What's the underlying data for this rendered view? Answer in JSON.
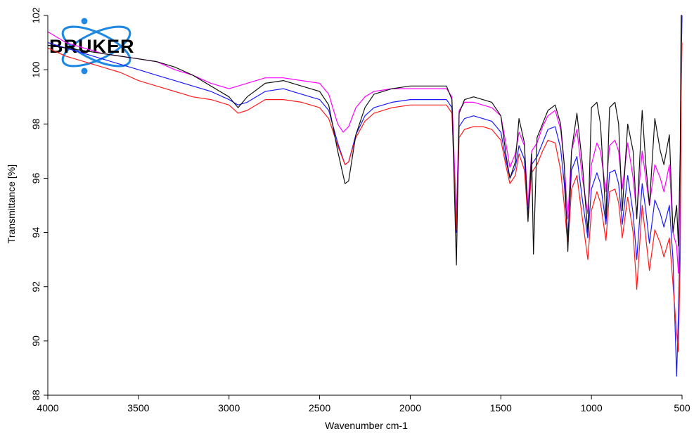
{
  "logo": {
    "text": "BRUKER",
    "orbit_color": "#1e88e5"
  },
  "chart_data": {
    "type": "line",
    "title": "",
    "xlabel": "Wavenumber cm-1",
    "ylabel": "Transmittance [%]",
    "xlim": [
      4000,
      500
    ],
    "ylim": [
      88,
      102
    ],
    "x_ticks": [
      4000,
      3500,
      3000,
      2500,
      2000,
      1500,
      1000,
      500
    ],
    "x_tick_labels": [
      "4000",
      "3500",
      "3000",
      "2500",
      "2000",
      "1500",
      "1000",
      "500"
    ],
    "y_ticks": [
      88,
      90,
      92,
      94,
      96,
      98,
      100,
      102
    ],
    "y_tick_labels": [
      "88",
      "90",
      "92",
      "94",
      "96",
      "98",
      "100",
      "102"
    ],
    "grid": false,
    "legend": "none",
    "series": [
      {
        "color": "#ff00ff",
        "points": [
          [
            4000,
            101.4
          ],
          [
            3900,
            101.0
          ],
          [
            3800,
            100.8
          ],
          [
            3700,
            100.6
          ],
          [
            3600,
            100.5
          ],
          [
            3500,
            100.4
          ],
          [
            3400,
            100.3
          ],
          [
            3300,
            100.0
          ],
          [
            3200,
            99.8
          ],
          [
            3100,
            99.5
          ],
          [
            3000,
            99.3
          ],
          [
            2950,
            99.4
          ],
          [
            2900,
            99.5
          ],
          [
            2800,
            99.7
          ],
          [
            2700,
            99.7
          ],
          [
            2600,
            99.6
          ],
          [
            2500,
            99.5
          ],
          [
            2450,
            99.1
          ],
          [
            2400,
            98.0
          ],
          [
            2370,
            97.7
          ],
          [
            2340,
            97.9
          ],
          [
            2300,
            98.6
          ],
          [
            2250,
            99.0
          ],
          [
            2200,
            99.2
          ],
          [
            2100,
            99.3
          ],
          [
            2000,
            99.3
          ],
          [
            1900,
            99.3
          ],
          [
            1800,
            99.3
          ],
          [
            1770,
            99.0
          ],
          [
            1745,
            94.6
          ],
          [
            1730,
            98.5
          ],
          [
            1700,
            98.8
          ],
          [
            1650,
            98.8
          ],
          [
            1600,
            98.7
          ],
          [
            1550,
            98.6
          ],
          [
            1500,
            98.3
          ],
          [
            1470,
            97.2
          ],
          [
            1450,
            96.4
          ],
          [
            1420,
            96.9
          ],
          [
            1400,
            97.7
          ],
          [
            1370,
            97.2
          ],
          [
            1350,
            95.0
          ],
          [
            1330,
            97.0
          ],
          [
            1300,
            97.3
          ],
          [
            1270,
            97.9
          ],
          [
            1240,
            98.3
          ],
          [
            1200,
            98.5
          ],
          [
            1170,
            97.8
          ],
          [
            1150,
            96.5
          ],
          [
            1130,
            94.5
          ],
          [
            1110,
            97.0
          ],
          [
            1080,
            97.8
          ],
          [
            1050,
            96.0
          ],
          [
            1020,
            94.7
          ],
          [
            1000,
            96.5
          ],
          [
            970,
            97.3
          ],
          [
            950,
            97.0
          ],
          [
            920,
            95.5
          ],
          [
            900,
            97.2
          ],
          [
            870,
            97.4
          ],
          [
            850,
            97.0
          ],
          [
            830,
            95.6
          ],
          [
            800,
            97.3
          ],
          [
            770,
            96.0
          ],
          [
            750,
            94.7
          ],
          [
            720,
            97.0
          ],
          [
            700,
            96.0
          ],
          [
            680,
            95.0
          ],
          [
            650,
            96.5
          ],
          [
            620,
            96.0
          ],
          [
            600,
            95.5
          ],
          [
            570,
            96.5
          ],
          [
            550,
            94.0
          ],
          [
            530,
            93.5
          ],
          [
            520,
            92.5
          ],
          [
            510,
            96.0
          ],
          [
            505,
            101.5
          ],
          [
            500,
            102.0
          ]
        ]
      },
      {
        "color": "#1a1aff",
        "points": [
          [
            4000,
            101.0
          ],
          [
            3900,
            100.8
          ],
          [
            3800,
            100.6
          ],
          [
            3700,
            100.4
          ],
          [
            3600,
            100.2
          ],
          [
            3500,
            100.0
          ],
          [
            3400,
            99.8
          ],
          [
            3300,
            99.6
          ],
          [
            3200,
            99.4
          ],
          [
            3100,
            99.2
          ],
          [
            3000,
            98.9
          ],
          [
            2950,
            98.7
          ],
          [
            2900,
            98.8
          ],
          [
            2800,
            99.2
          ],
          [
            2700,
            99.3
          ],
          [
            2600,
            99.1
          ],
          [
            2500,
            98.9
          ],
          [
            2450,
            98.5
          ],
          [
            2400,
            97.3
          ],
          [
            2360,
            96.5
          ],
          [
            2340,
            96.6
          ],
          [
            2300,
            97.6
          ],
          [
            2250,
            98.3
          ],
          [
            2200,
            98.6
          ],
          [
            2100,
            98.8
          ],
          [
            2000,
            98.9
          ],
          [
            1900,
            98.9
          ],
          [
            1800,
            98.9
          ],
          [
            1770,
            98.6
          ],
          [
            1745,
            94.0
          ],
          [
            1730,
            97.9
          ],
          [
            1700,
            98.2
          ],
          [
            1650,
            98.3
          ],
          [
            1600,
            98.2
          ],
          [
            1550,
            98.1
          ],
          [
            1500,
            97.7
          ],
          [
            1470,
            96.6
          ],
          [
            1450,
            96.0
          ],
          [
            1420,
            96.4
          ],
          [
            1400,
            97.2
          ],
          [
            1370,
            96.7
          ],
          [
            1350,
            94.7
          ],
          [
            1330,
            96.5
          ],
          [
            1300,
            96.8
          ],
          [
            1270,
            97.3
          ],
          [
            1240,
            97.8
          ],
          [
            1200,
            97.9
          ],
          [
            1170,
            97.1
          ],
          [
            1150,
            95.8
          ],
          [
            1130,
            93.8
          ],
          [
            1110,
            96.3
          ],
          [
            1080,
            96.8
          ],
          [
            1050,
            95.2
          ],
          [
            1020,
            93.8
          ],
          [
            1000,
            95.6
          ],
          [
            970,
            96.2
          ],
          [
            950,
            95.8
          ],
          [
            920,
            94.3
          ],
          [
            900,
            96.2
          ],
          [
            870,
            96.3
          ],
          [
            850,
            95.8
          ],
          [
            830,
            94.3
          ],
          [
            800,
            96.1
          ],
          [
            770,
            94.7
          ],
          [
            750,
            93.0
          ],
          [
            720,
            95.8
          ],
          [
            700,
            94.8
          ],
          [
            680,
            93.6
          ],
          [
            650,
            95.2
          ],
          [
            620,
            94.7
          ],
          [
            600,
            94.2
          ],
          [
            570,
            95.0
          ],
          [
            550,
            93.0
          ],
          [
            530,
            88.7
          ],
          [
            520,
            91.0
          ],
          [
            510,
            94.0
          ],
          [
            505,
            100.0
          ],
          [
            500,
            102.0
          ]
        ]
      },
      {
        "color": "#ff1a1a",
        "points": [
          [
            4000,
            100.8
          ],
          [
            3900,
            100.5
          ],
          [
            3800,
            100.3
          ],
          [
            3700,
            100.1
          ],
          [
            3600,
            99.9
          ],
          [
            3500,
            99.6
          ],
          [
            3400,
            99.4
          ],
          [
            3300,
            99.2
          ],
          [
            3200,
            99.0
          ],
          [
            3100,
            98.9
          ],
          [
            3000,
            98.7
          ],
          [
            2950,
            98.4
          ],
          [
            2900,
            98.5
          ],
          [
            2800,
            98.9
          ],
          [
            2700,
            98.9
          ],
          [
            2600,
            98.8
          ],
          [
            2500,
            98.6
          ],
          [
            2450,
            98.2
          ],
          [
            2400,
            97.2
          ],
          [
            2360,
            96.5
          ],
          [
            2340,
            96.6
          ],
          [
            2300,
            97.5
          ],
          [
            2250,
            98.1
          ],
          [
            2200,
            98.4
          ],
          [
            2100,
            98.6
          ],
          [
            2000,
            98.7
          ],
          [
            1900,
            98.7
          ],
          [
            1800,
            98.7
          ],
          [
            1770,
            98.4
          ],
          [
            1745,
            94.1
          ],
          [
            1730,
            97.5
          ],
          [
            1700,
            97.8
          ],
          [
            1650,
            97.9
          ],
          [
            1600,
            97.9
          ],
          [
            1550,
            97.8
          ],
          [
            1500,
            97.4
          ],
          [
            1470,
            96.4
          ],
          [
            1450,
            95.8
          ],
          [
            1420,
            96.1
          ],
          [
            1400,
            96.9
          ],
          [
            1370,
            96.3
          ],
          [
            1350,
            94.5
          ],
          [
            1330,
            96.2
          ],
          [
            1300,
            96.5
          ],
          [
            1270,
            97.0
          ],
          [
            1240,
            97.4
          ],
          [
            1200,
            97.3
          ],
          [
            1170,
            96.3
          ],
          [
            1150,
            95.0
          ],
          [
            1130,
            93.5
          ],
          [
            1110,
            95.6
          ],
          [
            1080,
            96.1
          ],
          [
            1050,
            94.5
          ],
          [
            1020,
            93.0
          ],
          [
            1000,
            94.8
          ],
          [
            970,
            95.5
          ],
          [
            950,
            95.1
          ],
          [
            920,
            93.7
          ],
          [
            900,
            95.5
          ],
          [
            870,
            95.6
          ],
          [
            850,
            95.1
          ],
          [
            830,
            93.8
          ],
          [
            800,
            95.3
          ],
          [
            770,
            94.0
          ],
          [
            750,
            91.9
          ],
          [
            720,
            95.0
          ],
          [
            700,
            93.8
          ],
          [
            680,
            92.6
          ],
          [
            650,
            94.1
          ],
          [
            620,
            93.6
          ],
          [
            600,
            93.1
          ],
          [
            570,
            93.8
          ],
          [
            550,
            92.1
          ],
          [
            530,
            90.3
          ],
          [
            520,
            89.6
          ],
          [
            510,
            93.0
          ],
          [
            505,
            99.0
          ],
          [
            500,
            101.0
          ]
        ]
      },
      {
        "color": "#111111",
        "points": [
          [
            4000,
            100.9
          ],
          [
            3900,
            100.8
          ],
          [
            3800,
            100.7
          ],
          [
            3700,
            100.6
          ],
          [
            3600,
            100.5
          ],
          [
            3500,
            100.4
          ],
          [
            3400,
            100.3
          ],
          [
            3300,
            100.1
          ],
          [
            3200,
            99.8
          ],
          [
            3100,
            99.4
          ],
          [
            3000,
            99.0
          ],
          [
            2950,
            98.6
          ],
          [
            2900,
            99.0
          ],
          [
            2800,
            99.5
          ],
          [
            2700,
            99.6
          ],
          [
            2600,
            99.4
          ],
          [
            2500,
            99.2
          ],
          [
            2450,
            98.7
          ],
          [
            2400,
            97.0
          ],
          [
            2360,
            95.8
          ],
          [
            2340,
            95.9
          ],
          [
            2300,
            97.6
          ],
          [
            2250,
            98.6
          ],
          [
            2200,
            99.1
          ],
          [
            2100,
            99.3
          ],
          [
            2000,
            99.4
          ],
          [
            1900,
            99.4
          ],
          [
            1800,
            99.4
          ],
          [
            1770,
            98.9
          ],
          [
            1745,
            92.8
          ],
          [
            1730,
            98.4
          ],
          [
            1700,
            98.9
          ],
          [
            1650,
            99.0
          ],
          [
            1600,
            98.9
          ],
          [
            1550,
            98.8
          ],
          [
            1500,
            98.3
          ],
          [
            1470,
            96.8
          ],
          [
            1450,
            96.0
          ],
          [
            1420,
            96.6
          ],
          [
            1400,
            98.2
          ],
          [
            1370,
            97.3
          ],
          [
            1350,
            94.4
          ],
          [
            1330,
            96.9
          ],
          [
            1320,
            93.2
          ],
          [
            1300,
            97.5
          ],
          [
            1270,
            98.0
          ],
          [
            1240,
            98.5
          ],
          [
            1200,
            98.7
          ],
          [
            1170,
            98.0
          ],
          [
            1150,
            96.5
          ],
          [
            1130,
            93.3
          ],
          [
            1110,
            97.0
          ],
          [
            1080,
            98.4
          ],
          [
            1050,
            96.5
          ],
          [
            1020,
            94.0
          ],
          [
            1000,
            98.6
          ],
          [
            970,
            98.8
          ],
          [
            950,
            98.0
          ],
          [
            920,
            94.5
          ],
          [
            900,
            98.6
          ],
          [
            870,
            98.8
          ],
          [
            850,
            98.0
          ],
          [
            830,
            94.8
          ],
          [
            800,
            98.0
          ],
          [
            770,
            97.0
          ],
          [
            750,
            94.5
          ],
          [
            720,
            98.5
          ],
          [
            700,
            96.5
          ],
          [
            680,
            95.0
          ],
          [
            650,
            98.2
          ],
          [
            620,
            97.0
          ],
          [
            600,
            96.5
          ],
          [
            570,
            97.6
          ],
          [
            550,
            94.0
          ],
          [
            530,
            95.0
          ],
          [
            520,
            93.5
          ],
          [
            510,
            97.0
          ],
          [
            505,
            102.0
          ],
          [
            500,
            102.0
          ]
        ]
      }
    ]
  }
}
